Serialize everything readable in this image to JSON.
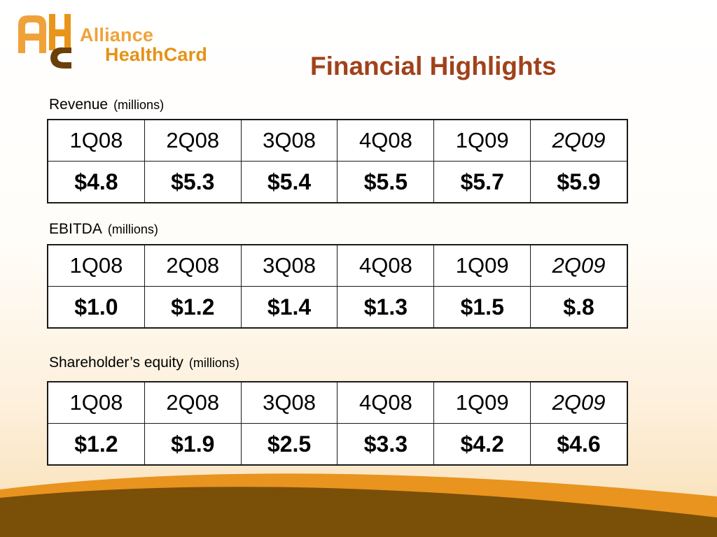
{
  "brand": {
    "line1": "Alliance",
    "line2": "HealthCard"
  },
  "title": "Financial Highlights",
  "colors": {
    "title": "#a0421a",
    "brand_orange": "#f0a23a",
    "swoosh_orange": "#e8941e",
    "swoosh_brown": "#7a4f08"
  },
  "sections": [
    {
      "label": "Revenue",
      "unit": "(millions)",
      "quarters": [
        "1Q08",
        "2Q08",
        "3Q08",
        "4Q08",
        "1Q09",
        "2Q09"
      ],
      "values": [
        "$4.8",
        "$5.3",
        "$5.4",
        "$5.5",
        "$5.7",
        "$5.9"
      ]
    },
    {
      "label": "EBITDA",
      "unit": "(millions)",
      "quarters": [
        "1Q08",
        "2Q08",
        "3Q08",
        "4Q08",
        "1Q09",
        "2Q09"
      ],
      "values": [
        "$1.0",
        "$1.2",
        "$1.4",
        "$1.3",
        "$1.5",
        "$.8"
      ]
    },
    {
      "label": "Shareholder’s equity",
      "unit": "(millions)",
      "quarters": [
        "1Q08",
        "2Q08",
        "3Q08",
        "4Q08",
        "1Q09",
        "2Q09"
      ],
      "values": [
        "$1.2",
        "$1.9",
        "$2.5",
        "$3.3",
        "$4.2",
        "$4.6"
      ]
    }
  ]
}
